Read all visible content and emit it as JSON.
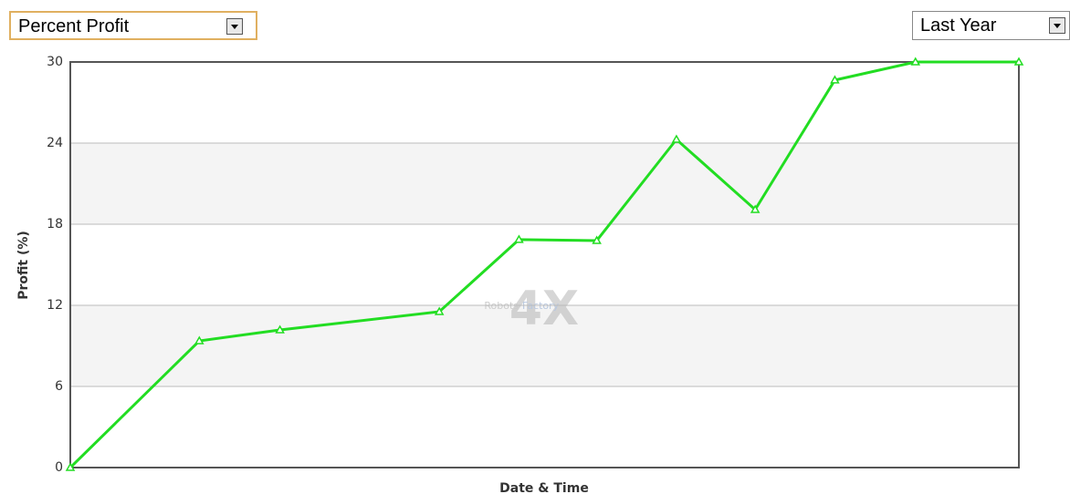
{
  "controls": {
    "metric": "Percent Profit",
    "period": "Last Year"
  },
  "chart_data": {
    "type": "line",
    "y_label": "Profit (%)",
    "x_label": "Date & Time",
    "watermark": {
      "logo": "4X",
      "text1": "Robots",
      "text2": "Factory"
    },
    "x": [
      0,
      13.6,
      22.1,
      38.9,
      47.3,
      55.5,
      63.9,
      72.2,
      80.6,
      89.1,
      100
    ],
    "xlim": [
      0,
      100
    ],
    "series": [
      {
        "name": "Percent Profit",
        "color": "#22dd22",
        "values": [
          0,
          9.37,
          10.18,
          11.53,
          16.86,
          16.79,
          24.27,
          19.08,
          28.66,
          30,
          30
        ]
      }
    ],
    "ylim": [
      0,
      30
    ],
    "yticks": [
      0,
      6,
      12,
      18,
      24,
      30
    ],
    "grid": true
  }
}
